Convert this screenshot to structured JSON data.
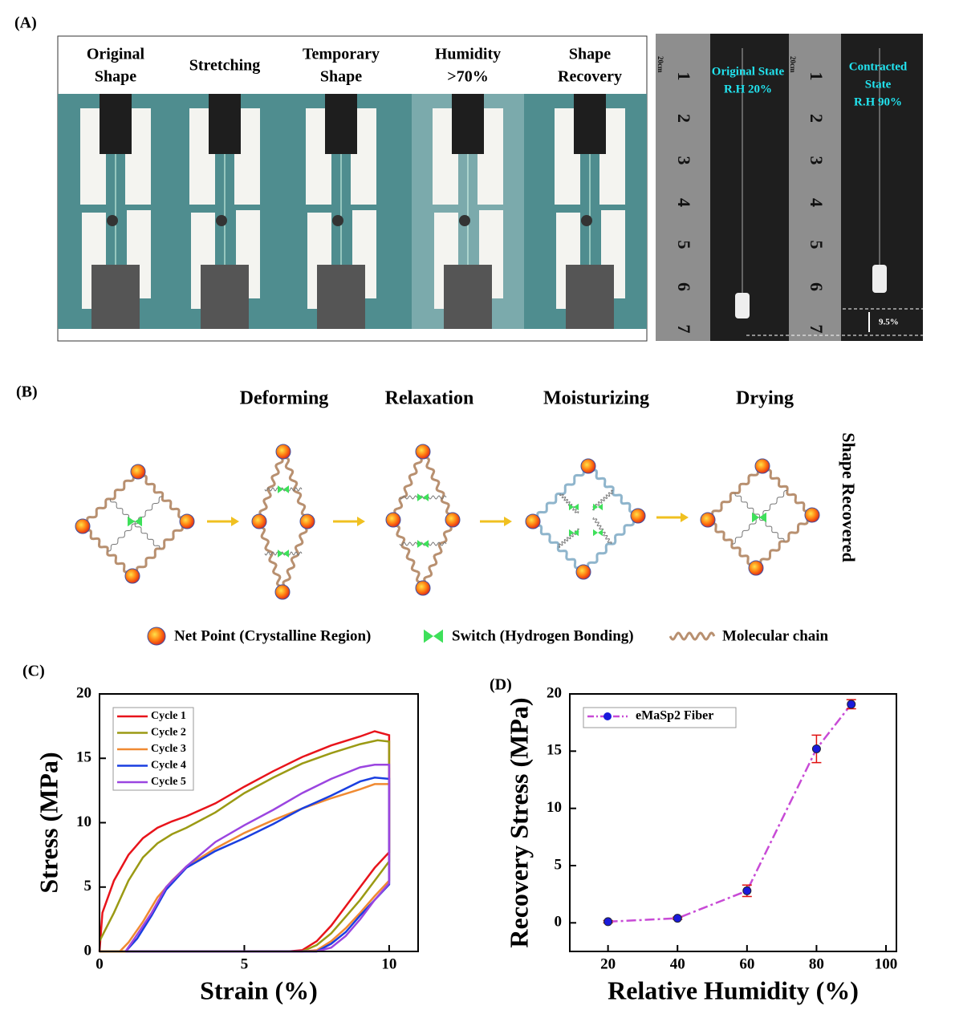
{
  "panel_a": {
    "label": "(A)",
    "columns": [
      [
        "Original",
        "Shape"
      ],
      [
        "Stretching"
      ],
      [
        "Temporary",
        "Shape"
      ],
      [
        "Humidity",
        ">70%"
      ],
      [
        "Shape",
        "Recovery"
      ]
    ],
    "ruler_unit": "20cm",
    "ruler_marks": [
      "1",
      "2",
      "3",
      "4",
      "5",
      "6",
      "7"
    ],
    "left_state": [
      "Original State",
      "R.H 20%"
    ],
    "right_state": [
      "Contracted",
      "State",
      "R.H 90%"
    ],
    "contraction": "9.5%"
  },
  "panel_b": {
    "label": "(B)",
    "stages": [
      "Deforming",
      "Relaxation",
      "Moisturizing",
      "Drying"
    ],
    "side_label": "Shape Recovered",
    "legend": [
      "Net Point (Crystalline Region)",
      "Switch (Hydrogen Bonding)",
      "Molecular chain"
    ]
  },
  "chart_data": [
    {
      "type": "line",
      "panel": "(C)",
      "xlabel": "Strain (%)",
      "ylabel": "Stress (MPa)",
      "xlim": [
        0,
        11
      ],
      "xticks": [
        0,
        5,
        10
      ],
      "ylim": [
        0,
        20
      ],
      "yticks": [
        0,
        5,
        10,
        15,
        20
      ],
      "series": [
        {
          "name": "Cycle 1",
          "color": "#e8141b",
          "x": [
            0,
            0.1,
            0.5,
            1,
            1.5,
            2,
            2.5,
            3,
            4,
            5,
            6,
            7,
            8,
            9,
            9.5,
            10,
            10,
            9.5,
            9,
            8.5,
            8,
            7.5,
            7,
            6.5,
            0
          ],
          "values": [
            0,
            3,
            5.5,
            7.5,
            8.8,
            9.6,
            10.1,
            10.5,
            11.5,
            12.8,
            14,
            15.1,
            16,
            16.7,
            17.1,
            16.8,
            7.7,
            6.5,
            5,
            3.5,
            2,
            0.8,
            0.1,
            0,
            0
          ]
        },
        {
          "name": "Cycle 2",
          "color": "#9b9a14",
          "x": [
            0,
            0.5,
            1,
            1.5,
            2,
            2.5,
            3,
            4,
            5,
            6,
            7,
            8,
            9,
            9.6,
            10,
            10,
            9.5,
            9,
            8.5,
            8,
            7.5,
            7,
            0
          ],
          "values": [
            0.8,
            3,
            5.5,
            7.3,
            8.4,
            9.1,
            9.6,
            10.8,
            12.3,
            13.5,
            14.6,
            15.4,
            16.1,
            16.4,
            16.3,
            7,
            5.5,
            4,
            2.7,
            1.4,
            0.5,
            0,
            0
          ]
        },
        {
          "name": "Cycle 3",
          "color": "#f08a32",
          "x": [
            0.7,
            1,
            1.5,
            2,
            2.5,
            3,
            4,
            5,
            6,
            7,
            8,
            9,
            9.5,
            10,
            10,
            9.5,
            9,
            8.5,
            8,
            7.5,
            7,
            0.7
          ],
          "values": [
            0,
            0.7,
            2.3,
            4.2,
            5.5,
            6.6,
            8,
            9.2,
            10.2,
            11.1,
            11.9,
            12.6,
            13,
            13,
            5.5,
            4.3,
            3,
            1.8,
            0.8,
            0.1,
            0,
            0
          ]
        },
        {
          "name": "Cycle 4",
          "color": "#1a3fe0",
          "x": [
            0.9,
            1.3,
            1.8,
            2.3,
            3,
            4,
            5,
            6,
            7,
            8,
            9,
            9.5,
            10,
            10,
            9.5,
            9,
            8.5,
            8,
            7.5,
            0.9
          ],
          "values": [
            0,
            1,
            2.8,
            4.8,
            6.5,
            7.8,
            8.8,
            9.9,
            11.1,
            12.1,
            13.2,
            13.5,
            13.4,
            5.2,
            4,
            2.8,
            1.5,
            0.6,
            0,
            0
          ]
        },
        {
          "name": "Cycle 5",
          "color": "#9b45e0",
          "x": [
            0.9,
            1.3,
            1.8,
            2.3,
            3,
            4,
            5,
            6,
            7,
            8,
            9,
            9.5,
            10,
            10,
            9.5,
            9,
            8.5,
            8,
            7.5,
            0.9
          ],
          "values": [
            0,
            1.3,
            3,
            5,
            6.6,
            8.5,
            9.8,
            11,
            12.3,
            13.4,
            14.3,
            14.5,
            14.5,
            5.3,
            4,
            2.5,
            1.2,
            0.3,
            0,
            0
          ]
        }
      ]
    },
    {
      "type": "line",
      "panel": "(D)",
      "xlabel": "Relative Humidity (%)",
      "ylabel": "Recovery Stress (MPa)",
      "xlim": [
        9,
        103
      ],
      "xticks": [
        20,
        40,
        60,
        80,
        100
      ],
      "ylim": [
        -2.5,
        20
      ],
      "yticks": [
        0,
        5,
        10,
        15,
        20
      ],
      "series": [
        {
          "name": "eMaSp2 Fiber",
          "color": "#c84bd6",
          "marker_color": "#1a1adb",
          "error_color": "#e01010",
          "x": [
            20,
            40,
            60,
            80,
            90
          ],
          "values": [
            0.1,
            0.4,
            2.8,
            15.2,
            19.1
          ],
          "errors": [
            0.1,
            0.1,
            0.5,
            1.2,
            0.4
          ]
        }
      ]
    }
  ]
}
